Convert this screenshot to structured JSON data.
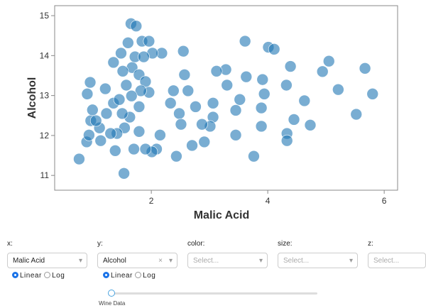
{
  "chart_data": {
    "type": "scatter",
    "x_label": "Malic Acid",
    "y_label": "Alcohol",
    "x": [
      0.76,
      1.53,
      1.65,
      1.74,
      3.61,
      4.01,
      4.11,
      5.05,
      5.67,
      4.39,
      4.94,
      5.21,
      5.8,
      5.52,
      4.73,
      4.45,
      4.33,
      4.33,
      4.63,
      4.32,
      3.76,
      3.45,
      3.89,
      3.89,
      3.94,
      3.91,
      3.63,
      3.28,
      3.12,
      3.3,
      3.52,
      3.45,
      3.06,
      3.06,
      3.01,
      2.87,
      2.76,
      2.63,
      2.57,
      2.55,
      2.38,
      2.33,
      2.48,
      2.51,
      2.7,
      2.91,
      2.43,
      2.15,
      2.09,
      2.01,
      1.9,
      1.7,
      1.38,
      1.13,
      0.89,
      0.93,
      0.96,
      0.99,
      0.9,
      0.95,
      1.11,
      1.23,
      1.35,
      1.35,
      1.48,
      1.6,
      1.84,
      1.96,
      2.18,
      2.02,
      1.67,
      1.79,
      1.9,
      1.96,
      1.79,
      1.63,
      1.54,
      1.41,
      1.79,
      1.57,
      1.51,
      1.72,
      1.82,
      1.3,
      1.05,
      1.21,
      1.45,
      1.66,
      1.5,
      1.87
    ],
    "y": [
      11.41,
      11.05,
      14.8,
      14.74,
      14.36,
      14.21,
      14.16,
      13.86,
      13.68,
      13.73,
      13.6,
      13.15,
      13.04,
      12.53,
      12.26,
      12.4,
      12.05,
      11.87,
      12.87,
      13.26,
      11.48,
      12.01,
      12.23,
      12.69,
      13.04,
      13.4,
      13.47,
      13.65,
      13.61,
      13.26,
      12.9,
      12.63,
      12.81,
      12.46,
      12.23,
      12.28,
      12.72,
      13.12,
      13.52,
      14.11,
      13.12,
      12.81,
      12.55,
      12.28,
      11.75,
      11.84,
      11.48,
      12.01,
      11.66,
      11.59,
      11.66,
      11.66,
      11.62,
      11.87,
      11.84,
      12.01,
      12.37,
      12.64,
      13.04,
      13.33,
      12.19,
      12.55,
      12.81,
      13.83,
      14.06,
      14.32,
      14.36,
      14.36,
      14.06,
      14.06,
      13.7,
      13.52,
      13.35,
      13.08,
      12.72,
      12.46,
      12.19,
      12.05,
      12.1,
      13.26,
      13.61,
      13.97,
      13.12,
      12.05,
      12.37,
      13.17,
      12.9,
      12.99,
      12.55,
      13.97
    ],
    "color": "#1f77b4",
    "xlim": [
      0.34,
      6.23
    ],
    "ylim": [
      10.63,
      15.25
    ],
    "xticks": [
      2,
      4,
      6
    ],
    "yticks": [
      11,
      12,
      13,
      14,
      15
    ],
    "grid": false
  },
  "controls": {
    "fields": [
      {
        "label": "x:",
        "value": "Malic Acid"
      },
      {
        "label": "y:",
        "value": "Alcohol"
      },
      {
        "label": "color:",
        "placeholder": "Select..."
      },
      {
        "label": "size:",
        "placeholder": "Select..."
      },
      {
        "label": "z:",
        "placeholder": "Select..."
      }
    ],
    "scale_options": [
      "Linear",
      "Log"
    ],
    "slider_label": "Wine Data"
  }
}
